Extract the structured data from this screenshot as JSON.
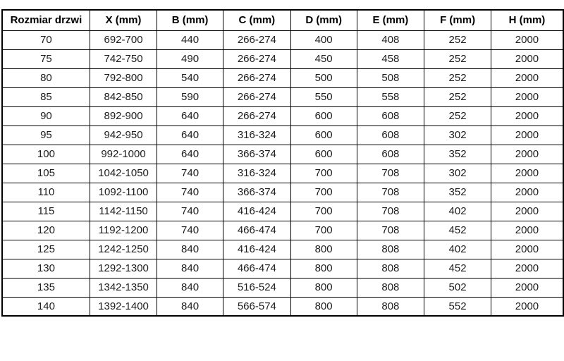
{
  "chart_data": {
    "type": "table",
    "title": "",
    "columns": [
      "Rozmiar drzwi",
      "X (mm)",
      "B (mm)",
      "C (mm)",
      "D (mm)",
      "E (mm)",
      "F (mm)",
      "H (mm)"
    ],
    "rows": [
      [
        "70",
        "692-700",
        "440",
        "266-274",
        "400",
        "408",
        "252",
        "2000"
      ],
      [
        "75",
        "742-750",
        "490",
        "266-274",
        "450",
        "458",
        "252",
        "2000"
      ],
      [
        "80",
        "792-800",
        "540",
        "266-274",
        "500",
        "508",
        "252",
        "2000"
      ],
      [
        "85",
        "842-850",
        "590",
        "266-274",
        "550",
        "558",
        "252",
        "2000"
      ],
      [
        "90",
        "892-900",
        "640",
        "266-274",
        "600",
        "608",
        "252",
        "2000"
      ],
      [
        "95",
        "942-950",
        "640",
        "316-324",
        "600",
        "608",
        "302",
        "2000"
      ],
      [
        "100",
        "992-1000",
        "640",
        "366-374",
        "600",
        "608",
        "352",
        "2000"
      ],
      [
        "105",
        "1042-1050",
        "740",
        "316-324",
        "700",
        "708",
        "302",
        "2000"
      ],
      [
        "110",
        "1092-1100",
        "740",
        "366-374",
        "700",
        "708",
        "352",
        "2000"
      ],
      [
        "115",
        "1142-1150",
        "740",
        "416-424",
        "700",
        "708",
        "402",
        "2000"
      ],
      [
        "120",
        "1192-1200",
        "740",
        "466-474",
        "700",
        "708",
        "452",
        "2000"
      ],
      [
        "125",
        "1242-1250",
        "840",
        "416-424",
        "800",
        "808",
        "402",
        "2000"
      ],
      [
        "130",
        "1292-1300",
        "840",
        "466-474",
        "800",
        "808",
        "452",
        "2000"
      ],
      [
        "135",
        "1342-1350",
        "840",
        "516-524",
        "800",
        "808",
        "502",
        "2000"
      ],
      [
        "140",
        "1392-1400",
        "840",
        "566-574",
        "800",
        "808",
        "552",
        "2000"
      ]
    ]
  },
  "colors": {
    "border": "#000000",
    "text": "#1c1c1c",
    "background": "#ffffff"
  }
}
